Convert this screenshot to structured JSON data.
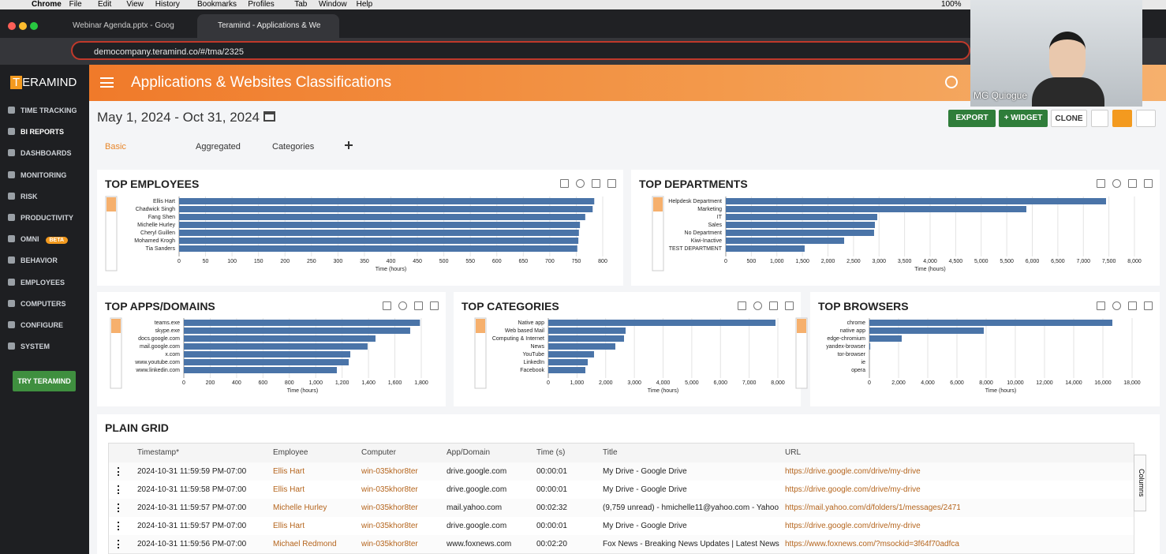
{
  "os_menu": {
    "items": [
      "Chrome",
      "File",
      "Edit",
      "View",
      "History",
      "Bookmarks",
      "Profiles",
      "Tab",
      "Window",
      "Help"
    ],
    "battery": "100%"
  },
  "browser": {
    "tabs": [
      "Webinar Agenda.pptx - Goog",
      "Teramind - Applications & We"
    ],
    "url": "democompany.teramind.co/#/tma/2325"
  },
  "sidebar": {
    "logo_letter": "T",
    "logo_rest": "ERAMIND",
    "items": [
      "TIME TRACKING",
      "BI REPORTS",
      "DASHBOARDS",
      "MONITORING",
      "RISK",
      "PRODUCTIVITY",
      "OMNI",
      "BEHAVIOR",
      "EMPLOYEES",
      "COMPUTERS",
      "CONFIGURE",
      "SYSTEM"
    ],
    "badge": "BETA",
    "cta": "TRY TERAMIND"
  },
  "header": {
    "title": "Applications & Websites Classifications"
  },
  "toolbar": {
    "date_range": "May 1, 2024 - Oct 31, 2024",
    "buttons": [
      "EXPORT",
      "+ WIDGET",
      "CLONE"
    ],
    "report_tabs": [
      "Basic",
      "Aggregated",
      "Categories"
    ]
  },
  "widgets": [
    {
      "title": "TOP EMPLOYEES",
      "categories": [
        "Ellis Hart",
        "Chadwick Singh",
        "Fang Shen",
        "Michelle Hurley",
        "Cheryl Guillen",
        "Mohamed Krogh",
        "Tia Sanders"
      ],
      "values": [
        784,
        781,
        767,
        757,
        755,
        754,
        752
      ],
      "xlim": [
        0,
        800
      ],
      "xticks": [
        0,
        50,
        100,
        150,
        200,
        250,
        300,
        350,
        400,
        450,
        500,
        550,
        600,
        650,
        700,
        750,
        800
      ],
      "xlabel": "Time (hours)",
      "color": "#4a74a8"
    },
    {
      "title": "TOP DEPARTMENTS",
      "categories": [
        "Helpdesk Department",
        "Marketing",
        "IT",
        "Sales",
        "No Department",
        "Kiwi-Inactive",
        "TEST DEPARTMENT"
      ],
      "values": [
        7444,
        5884,
        2965,
        2919,
        2903,
        2317,
        1544
      ],
      "xlim": [
        0,
        8000
      ],
      "xticks": [
        0,
        500,
        {
          "value": 1000,
          "label": "1,000"
        },
        {
          "value": 1500,
          "label": "1,500"
        },
        {
          "value": 2000,
          "label": "2,000"
        },
        {
          "value": 2500,
          "label": "2,500"
        },
        {
          "value": 3000,
          "label": "3,000"
        },
        {
          "value": 3500,
          "label": "3,500"
        },
        {
          "value": 4000,
          "label": "4,000"
        },
        {
          "value": 4500,
          "label": "4,500"
        },
        {
          "value": 5000,
          "label": "5,000"
        },
        {
          "value": 5500,
          "label": "5,500"
        },
        {
          "value": 6000,
          "label": "6,000"
        },
        {
          "value": 6500,
          "label": "6,500"
        },
        {
          "value": 7000,
          "label": "7,000"
        },
        {
          "value": 7500,
          "label": "7,500"
        },
        {
          "value": 8000,
          "label": "8,000"
        }
      ],
      "xlabel": "Time (hours)",
      "color": "#4a74a8"
    },
    {
      "title": "TOP APPS/DOMAINS",
      "categories": [
        "teams.exe",
        "skype.exe",
        "docs.google.com",
        "mail.google.com",
        "x.com",
        "www.youtube.com",
        "www.linkedin.com"
      ],
      "values": [
        1790,
        1716,
        1453,
        1393,
        1262,
        1250,
        1160
      ],
      "xlim": [
        0,
        1800
      ],
      "xticks": [
        0,
        200,
        400,
        600,
        800,
        {
          "value": 1000,
          "label": "1,000"
        },
        {
          "value": 1200,
          "label": "1,200"
        },
        {
          "value": 1400,
          "label": "1,400"
        },
        {
          "value": 1600,
          "label": "1,600"
        },
        {
          "value": 1800,
          "label": "1,800"
        }
      ],
      "xlabel": "Time (hours)",
      "color": "#4a74a8"
    },
    {
      "title": "TOP CATEGORIES",
      "categories": [
        "Native app",
        "Web based Mail",
        "Computing & Internet",
        "News",
        "YouTube",
        "LinkedIn",
        "Facebook"
      ],
      "values": [
        7918,
        2694,
        2639,
        2337,
        1594,
        1375,
        1292
      ],
      "xlim": [
        0,
        8000
      ],
      "xticks": [
        0,
        {
          "value": 1000,
          "label": "1,000"
        },
        {
          "value": 2000,
          "label": "2,000"
        },
        {
          "value": 3000,
          "label": "3,000"
        },
        {
          "value": 4000,
          "label": "4,000"
        },
        {
          "value": 5000,
          "label": "5,000"
        },
        {
          "value": 6000,
          "label": "6,000"
        },
        {
          "value": 7000,
          "label": "7,000"
        },
        {
          "value": 8000,
          "label": "8,000"
        }
      ],
      "xlabel": "Time (hours)",
      "color": "#4a74a8"
    },
    {
      "title": "TOP BROWSERS",
      "categories": [
        "chrome",
        "native app",
        "edge-chromium",
        "yandex-browser",
        "tor-browser",
        "ie",
        "opera"
      ],
      "values": [
        16649,
        7838,
        2216,
        60,
        0,
        0,
        0
      ],
      "xlim": [
        0,
        18000
      ],
      "xticks": [
        0,
        {
          "value": 2000,
          "label": "2,000"
        },
        {
          "value": 4000,
          "label": "4,000"
        },
        {
          "value": 6000,
          "label": "6,000"
        },
        {
          "value": 8000,
          "label": "8,000"
        },
        {
          "value": 10000,
          "label": "10,000"
        },
        {
          "value": 12000,
          "label": "12,000"
        },
        {
          "value": 14000,
          "label": "14,000"
        },
        {
          "value": 16000,
          "label": "16,000"
        },
        {
          "value": 18000,
          "label": "18,000"
        }
      ],
      "xlabel": "Time (hours)",
      "color": "#4a74a8"
    }
  ],
  "grid": {
    "title": "PLAIN GRID",
    "columns": [
      "Timestamp*",
      "Employee",
      "Computer",
      "App/Domain",
      "Time (s)",
      "Title",
      "URL"
    ],
    "side_label": "Columns",
    "rows": [
      [
        "2024-10-31 11:59:59 PM-07:00",
        "Ellis Hart",
        "win-035khor8ter",
        "drive.google.com",
        "00:00:01",
        "My Drive - Google Drive",
        "https://drive.google.com/drive/my-drive"
      ],
      [
        "2024-10-31 11:59:58 PM-07:00",
        "Ellis Hart",
        "win-035khor8ter",
        "drive.google.com",
        "00:00:01",
        "My Drive - Google Drive",
        "https://drive.google.com/drive/my-drive"
      ],
      [
        "2024-10-31 11:59:57 PM-07:00",
        "Michelle Hurley",
        "win-035khor8ter",
        "mail.yahoo.com",
        "00:02:32",
        "(9,759 unread) - hmichelle11@yahoo.com - Yahoo M",
        "https://mail.yahoo.com/d/folders/1/messages/24719"
      ],
      [
        "2024-10-31 11:59:57 PM-07:00",
        "Ellis Hart",
        "win-035khor8ter",
        "drive.google.com",
        "00:00:01",
        "My Drive - Google Drive",
        "https://drive.google.com/drive/my-drive"
      ],
      [
        "2024-10-31 11:59:56 PM-07:00",
        "Michael Redmond",
        "win-035khor8ter",
        "www.foxnews.com",
        "00:02:20",
        "Fox News - Breaking News Updates | Latest News H",
        "https://www.foxnews.com/?msockid=3f64f70adfca"
      ]
    ]
  },
  "webcam": {
    "name": "MG Quiogue"
  }
}
